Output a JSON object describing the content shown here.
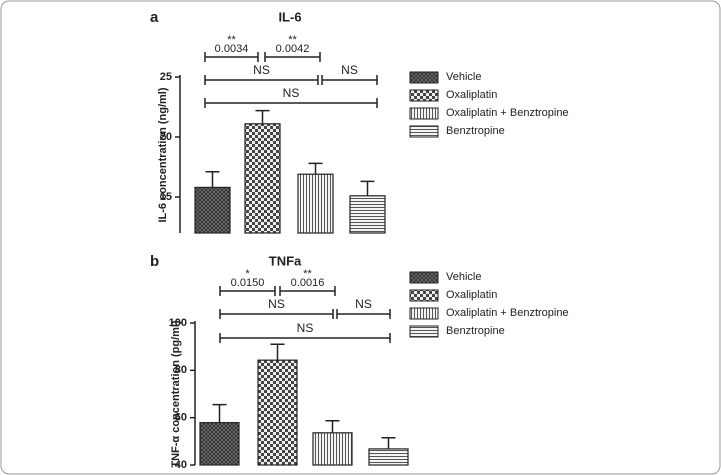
{
  "chart_data": [
    {
      "type": "bar",
      "panel": "a",
      "title": "IL-6",
      "y_label": "IL-6 concentration (ng/ml)",
      "categories": [
        "Vehicle",
        "Oxaliplatin",
        "Oxaliplatin + Benztropine",
        "Benztropine"
      ],
      "values": [
        15.8,
        21.1,
        16.9,
        15.1
      ],
      "errors": [
        1.3,
        1.1,
        0.9,
        1.2
      ],
      "patterns": [
        "crosshatch",
        "checker",
        "vertical",
        "horizontal"
      ],
      "ylim": [
        12,
        25
      ],
      "yticks": [
        15,
        20,
        25
      ],
      "annotations": [
        {
          "stars": "**",
          "label": "0.0034"
        },
        {
          "stars": "**",
          "label": "0.0042"
        },
        {
          "label": "NS"
        },
        {
          "label": "NS"
        },
        {
          "label": "NS"
        }
      ]
    },
    {
      "type": "bar",
      "panel": "b",
      "title": "TNFa",
      "y_label": "TNF-α concentration (pg/ml)",
      "categories": [
        "Vehicle",
        "Oxaliplatin",
        "Oxaliplatin + Benztropine",
        "Benztropine"
      ],
      "values": [
        57.9,
        84.3,
        53.6,
        46.8
      ],
      "errors": [
        7.6,
        6.7,
        5.1,
        4.7
      ],
      "patterns": [
        "crosshatch",
        "checker",
        "vertical",
        "horizontal"
      ],
      "ylim": [
        40,
        100
      ],
      "yticks": [
        40,
        60,
        80,
        100
      ],
      "annotations": [
        {
          "stars": "*",
          "label": "0.0150"
        },
        {
          "stars": "**",
          "label": "0.0016"
        },
        {
          "label": "NS"
        },
        {
          "label": "NS"
        },
        {
          "label": "NS"
        }
      ]
    }
  ]
}
